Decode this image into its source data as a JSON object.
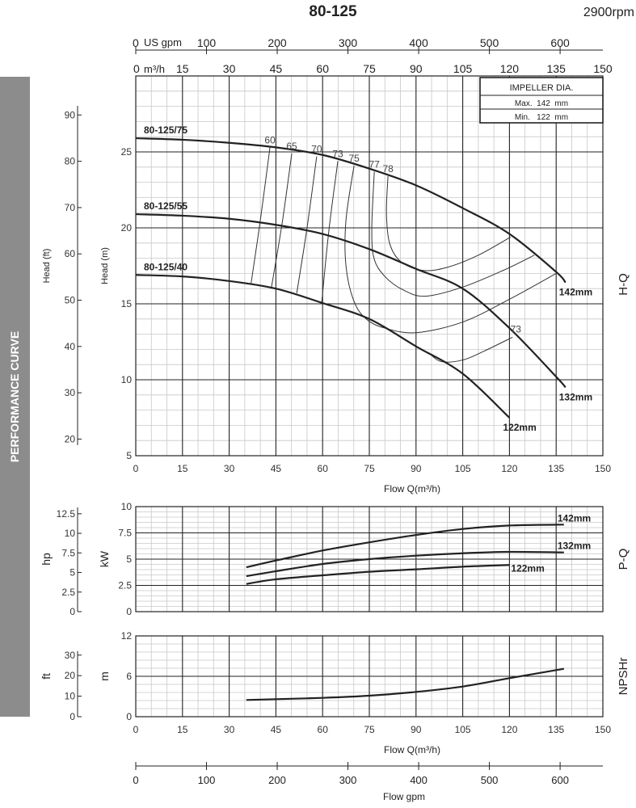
{
  "header": {
    "title": "80-125",
    "rpm": "2900rpm"
  },
  "sidebar": {
    "label": "PERFORMANCE CURVE"
  },
  "impeller_box": {
    "title": "IMPELLER DIA.",
    "max": "Max.  142  mm",
    "min": "Min.   122  mm"
  },
  "top_axes": {
    "gpm_unit": "US gpm",
    "gpm_ticks": [
      0,
      100,
      200,
      300,
      400,
      500,
      600
    ],
    "m3h_unit": "m³/h",
    "m3h_ticks": [
      0,
      15,
      30,
      45,
      60,
      75,
      90,
      105,
      120,
      135,
      150
    ]
  },
  "bottom_axis": {
    "label": "Flow gpm",
    "ticks": [
      0,
      100,
      200,
      300,
      400,
      500,
      600
    ]
  },
  "chart_data": [
    {
      "type": "line",
      "name": "H-Q",
      "xlabel": "Flow Q(m³/h)",
      "ylabel": "Head (m)",
      "ylabel_secondary": "Head (ft)",
      "xlim": [
        0,
        150
      ],
      "ylim": [
        5,
        30
      ],
      "xticks": [
        0,
        15,
        30,
        45,
        60,
        75,
        90,
        105,
        120,
        135,
        150
      ],
      "yticks": [
        5,
        10,
        15,
        20,
        25
      ],
      "yticks_secondary": [
        20,
        30,
        40,
        50,
        60,
        70,
        80,
        90
      ],
      "grid": true,
      "series": [
        {
          "name": "142mm",
          "model": "80-125/75",
          "points": [
            [
              0,
              25.9
            ],
            [
              15,
              25.8
            ],
            [
              30,
              25.6
            ],
            [
              45,
              25.3
            ],
            [
              60,
              24.8
            ],
            [
              75,
              23.9
            ],
            [
              90,
              22.8
            ],
            [
              105,
              21.3
            ],
            [
              120,
              19.6
            ],
            [
              135,
              17.1
            ],
            [
              138,
              16.4
            ]
          ]
        },
        {
          "name": "132mm",
          "model": "80-125/55",
          "points": [
            [
              0,
              20.9
            ],
            [
              15,
              20.8
            ],
            [
              30,
              20.6
            ],
            [
              45,
              20.2
            ],
            [
              60,
              19.6
            ],
            [
              75,
              18.6
            ],
            [
              90,
              17.3
            ],
            [
              105,
              16.0
            ],
            [
              120,
              13.4
            ],
            [
              135,
              10.2
            ],
            [
              138,
              9.5
            ]
          ]
        },
        {
          "name": "122mm",
          "model": "80-125/40",
          "points": [
            [
              0,
              16.9
            ],
            [
              15,
              16.8
            ],
            [
              30,
              16.5
            ],
            [
              45,
              16.0
            ],
            [
              60,
              15.05
            ],
            [
              75,
              14.0
            ],
            [
              90,
              12.2
            ],
            [
              105,
              10.4
            ],
            [
              120,
              7.5
            ]
          ]
        }
      ],
      "efficiency_curves": [
        {
          "label": "60",
          "points": [
            [
              43.1,
              25.3
            ],
            [
              40,
              20.5
            ],
            [
              37,
              16.3
            ]
          ]
        },
        {
          "label": "65",
          "points": [
            [
              50.1,
              24.9
            ],
            [
              47,
              20.3
            ],
            [
              43.5,
              16.0
            ]
          ]
        },
        {
          "label": "70",
          "points": [
            [
              58.1,
              24.7
            ],
            [
              55,
              20.0
            ],
            [
              51.7,
              15.7
            ]
          ]
        },
        {
          "label": "73",
          "points": [
            [
              64.9,
              24.4
            ],
            [
              62,
              19.8
            ],
            [
              59.7,
              15.05
            ]
          ]
        },
        {
          "label": "75",
          "points": [
            [
              70.1,
              24.1
            ],
            [
              67.5,
              20.5
            ],
            [
              67.5,
              17.5
            ],
            [
              70,
              15.2
            ],
            [
              74,
              14
            ],
            [
              80,
              13.4
            ],
            [
              90,
              13.1
            ],
            [
              105,
              13.8
            ],
            [
              120,
              15.3
            ],
            [
              135,
              17.0
            ]
          ]
        },
        {
          "label": "77",
          "points": [
            [
              76.6,
              23.7
            ],
            [
              75.8,
              20
            ],
            [
              76.5,
              18
            ],
            [
              80,
              16.8
            ],
            [
              86,
              15.9
            ],
            [
              93,
              15.5
            ],
            [
              105,
              16.1
            ],
            [
              118,
              17.2
            ],
            [
              128,
              18.2
            ]
          ]
        },
        {
          "label": "78",
          "points": [
            [
              81,
              23.4
            ],
            [
              80.5,
              21
            ],
            [
              81.5,
              19
            ],
            [
              85,
              17.8
            ],
            [
              92,
              17.2
            ],
            [
              100,
              17.4
            ],
            [
              110,
              18.2
            ],
            [
              120.4,
              19.4
            ]
          ]
        },
        {
          "label": "73",
          "points": [
            [
              94,
              11.8
            ],
            [
              98,
              11.2
            ],
            [
              105,
              11.3
            ],
            [
              112,
              11.9
            ],
            [
              121,
              12.8
            ]
          ]
        }
      ],
      "side_label": "H-Q"
    },
    {
      "type": "line",
      "name": "P-Q",
      "ylabel": "kW",
      "ylabel_secondary": "hp",
      "xlim": [
        0,
        150
      ],
      "ylim": [
        0,
        10
      ],
      "yticks": [
        0,
        2.5,
        5,
        7.5,
        10
      ],
      "yticks_secondary": [
        0,
        2.5,
        5,
        7.5,
        10,
        12.5
      ],
      "grid": true,
      "series": [
        {
          "name": "142mm",
          "points": [
            [
              35.5,
              4.23
            ],
            [
              45,
              4.87
            ],
            [
              60,
              5.82
            ],
            [
              75,
              6.6
            ],
            [
              90,
              7.3
            ],
            [
              105,
              7.87
            ],
            [
              120,
              8.2
            ],
            [
              135,
              8.28
            ],
            [
              137.5,
              8.28
            ]
          ]
        },
        {
          "name": "132mm",
          "points": [
            [
              35.5,
              3.38
            ],
            [
              45,
              3.85
            ],
            [
              60,
              4.54
            ],
            [
              75,
              5.0
            ],
            [
              90,
              5.33
            ],
            [
              105,
              5.56
            ],
            [
              120,
              5.69
            ],
            [
              137.5,
              5.64
            ]
          ]
        },
        {
          "name": "122mm",
          "points": [
            [
              35.5,
              2.64
            ],
            [
              45,
              3.08
            ],
            [
              60,
              3.46
            ],
            [
              75,
              3.8
            ],
            [
              90,
              4.03
            ],
            [
              105,
              4.28
            ],
            [
              120,
              4.44
            ]
          ]
        }
      ],
      "side_label": "P-Q"
    },
    {
      "type": "line",
      "name": "NPSHr",
      "xlabel": "Flow Q(m³/h)",
      "ylabel": "m",
      "ylabel_secondary": "ft",
      "xlim": [
        0,
        150
      ],
      "ylim": [
        0,
        12
      ],
      "xticks": [
        0,
        15,
        30,
        45,
        60,
        75,
        90,
        105,
        120,
        135,
        150
      ],
      "yticks": [
        0,
        6,
        12
      ],
      "yticks_secondary": [
        0,
        10,
        20,
        30
      ],
      "grid": true,
      "series": [
        {
          "name": "NPSHr",
          "points": [
            [
              35.5,
              2.48
            ],
            [
              45,
              2.6
            ],
            [
              60,
              2.8
            ],
            [
              75,
              3.12
            ],
            [
              90,
              3.68
            ],
            [
              105,
              4.48
            ],
            [
              120,
              5.72
            ],
            [
              137.5,
              7.12
            ]
          ]
        }
      ],
      "side_label": "NPSHr"
    }
  ]
}
